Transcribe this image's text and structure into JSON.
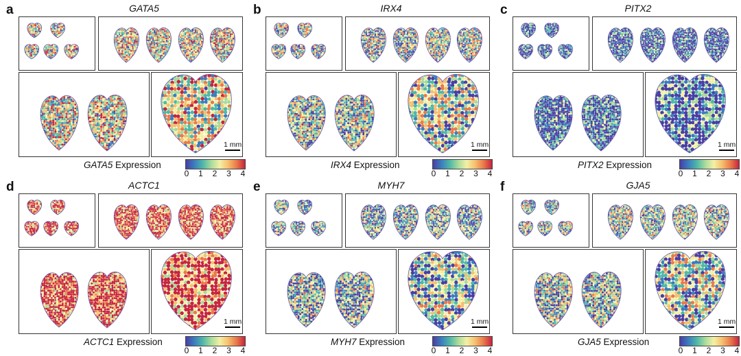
{
  "scale_label": "1 mm",
  "ticks": [
    "0",
    "1",
    "2",
    "3",
    "4"
  ],
  "expression_suffix": " Expression",
  "colormap": [
    "#4a3fa3",
    "#3b7dbf",
    "#4fb7a8",
    "#a9db9b",
    "#f3f0a6",
    "#f6c06e",
    "#ea7a4a",
    "#c6253e"
  ],
  "panels": [
    {
      "letter": "a",
      "gene": "GATA5",
      "level": 0.55
    },
    {
      "letter": "b",
      "gene": "IRX4",
      "level": 0.42
    },
    {
      "letter": "c",
      "gene": "PITX2",
      "level": 0.12
    },
    {
      "letter": "d",
      "gene": "ACTC1",
      "level": 0.88
    },
    {
      "letter": "e",
      "gene": "MYH7",
      "level": 0.35
    },
    {
      "letter": "f",
      "gene": "GJA5",
      "level": 0.4
    }
  ]
}
